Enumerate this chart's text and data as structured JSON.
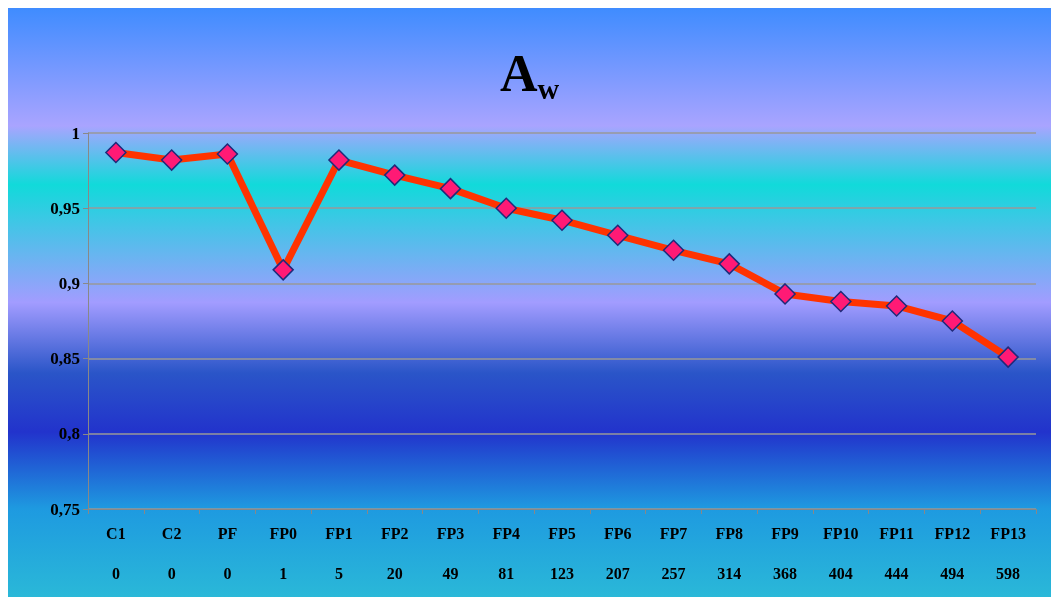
{
  "chart_data": {
    "type": "line",
    "title": "A$_{w}$",
    "categories": [
      "C1\n0",
      "C2\n0",
      "PF\n0",
      "FP0\n1",
      "FP1\n5",
      "FP2\n20",
      "FP3\n49",
      "FP4\n81",
      "FP5\n123",
      "FP6\n207",
      "FP7\n257",
      "FP8\n314",
      "FP9\n368",
      "FP10\n404",
      "FP11\n444",
      "FP12\n494",
      "FP13\n598"
    ],
    "series": [
      {
        "color": "#ff3300",
        "values": [
          0.987,
          0.982,
          0.986,
          0.909,
          0.982,
          0.972,
          0.963,
          0.95,
          0.942,
          0.932,
          0.922,
          0.913,
          0.893,
          0.888,
          0.885,
          0.875,
          0.851
        ]
      }
    ],
    "ylim": [
      0.75,
      1
    ],
    "yticks": [
      {
        "value": 0.75,
        "label": "0,75"
      },
      {
        "value": 0.8,
        "label": "0,8"
      },
      {
        "value": 0.85,
        "label": "0,85"
      },
      {
        "value": 0.9,
        "label": "0,9"
      },
      {
        "value": 0.95,
        "label": "0,95"
      },
      1
    ],
    "grid": "y",
    "marker": "diamond",
    "line_style": "solid"
  }
}
